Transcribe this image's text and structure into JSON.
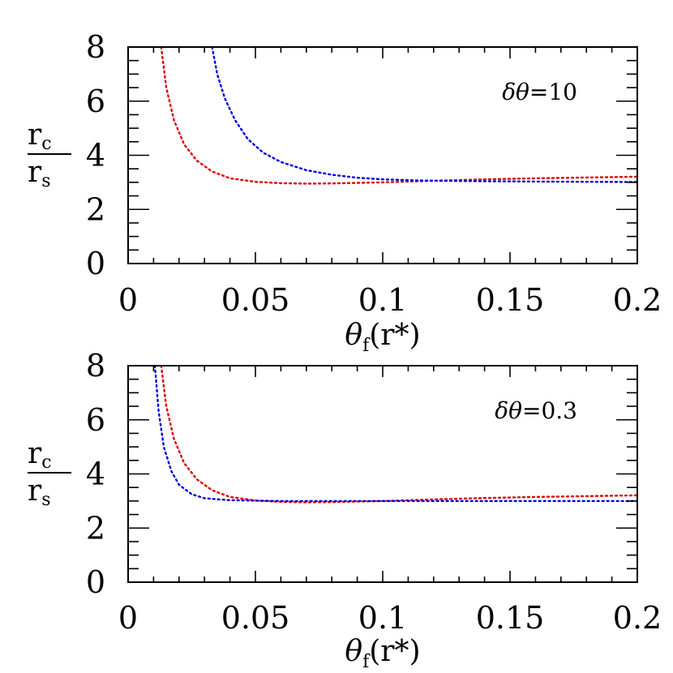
{
  "chart_data": [
    {
      "type": "line",
      "panel": "top",
      "annotation": "δθ=10",
      "xlabel": "θf(r*)",
      "ylabel": "rc/rs",
      "xlim": [
        0,
        0.2
      ],
      "ylim": [
        0,
        8
      ],
      "x_ticks": [
        0,
        0.05,
        0.1,
        0.15,
        0.2
      ],
      "x_tick_labels": [
        "0",
        "0.05",
        "0.1",
        "0.15",
        "0.2"
      ],
      "y_ticks": [
        0,
        2,
        4,
        6,
        8
      ],
      "y_tick_labels": [
        "0",
        "2",
        "4",
        "6",
        "8"
      ],
      "line_style": "dotted",
      "legend": "none",
      "series": [
        {
          "color": "#e00000",
          "x": [
            0.013,
            0.015,
            0.018,
            0.022,
            0.027,
            0.033,
            0.04,
            0.05,
            0.06,
            0.07,
            0.08,
            0.1,
            0.12,
            0.14,
            0.16,
            0.18,
            0.2
          ],
          "y": [
            8.0,
            6.5,
            5.3,
            4.4,
            3.8,
            3.4,
            3.15,
            3.02,
            2.97,
            2.95,
            2.96,
            3.0,
            3.06,
            3.11,
            3.15,
            3.18,
            3.21
          ]
        },
        {
          "color": "#0000e0",
          "x": [
            0.033,
            0.035,
            0.038,
            0.042,
            0.047,
            0.053,
            0.06,
            0.07,
            0.08,
            0.09,
            0.1,
            0.11,
            0.12,
            0.14,
            0.16,
            0.18,
            0.2
          ],
          "y": [
            8.0,
            7.0,
            6.1,
            5.3,
            4.6,
            4.1,
            3.75,
            3.45,
            3.28,
            3.17,
            3.11,
            3.08,
            3.06,
            3.04,
            3.03,
            3.02,
            3.01
          ]
        }
      ]
    },
    {
      "type": "line",
      "panel": "bottom",
      "annotation": "δθ=0.3",
      "xlabel": "θf(r*)",
      "ylabel": "rc/rs",
      "xlim": [
        0,
        0.2
      ],
      "ylim": [
        0,
        8
      ],
      "x_ticks": [
        0,
        0.05,
        0.1,
        0.15,
        0.2
      ],
      "x_tick_labels": [
        "0",
        "0.05",
        "0.1",
        "0.15",
        "0.2"
      ],
      "y_ticks": [
        0,
        2,
        4,
        6,
        8
      ],
      "y_tick_labels": [
        "0",
        "2",
        "4",
        "6",
        "8"
      ],
      "line_style": "dotted",
      "legend": "none",
      "series": [
        {
          "color": "#e00000",
          "x": [
            0.013,
            0.015,
            0.018,
            0.022,
            0.027,
            0.033,
            0.04,
            0.05,
            0.06,
            0.07,
            0.08,
            0.1,
            0.12,
            0.14,
            0.16,
            0.18,
            0.2
          ],
          "y": [
            8.0,
            6.5,
            5.3,
            4.4,
            3.8,
            3.4,
            3.15,
            3.02,
            2.97,
            2.95,
            2.96,
            3.0,
            3.06,
            3.11,
            3.15,
            3.18,
            3.21
          ]
        },
        {
          "color": "#0000e0",
          "x": [
            0.0105,
            0.012,
            0.014,
            0.017,
            0.02,
            0.025,
            0.03,
            0.04,
            0.05,
            0.06,
            0.08,
            0.1,
            0.12,
            0.15,
            0.2
          ],
          "y": [
            8.0,
            6.3,
            5.0,
            4.1,
            3.6,
            3.25,
            3.1,
            3.03,
            3.01,
            3.0,
            3.0,
            3.0,
            3.0,
            3.0,
            3.0
          ]
        }
      ]
    }
  ]
}
